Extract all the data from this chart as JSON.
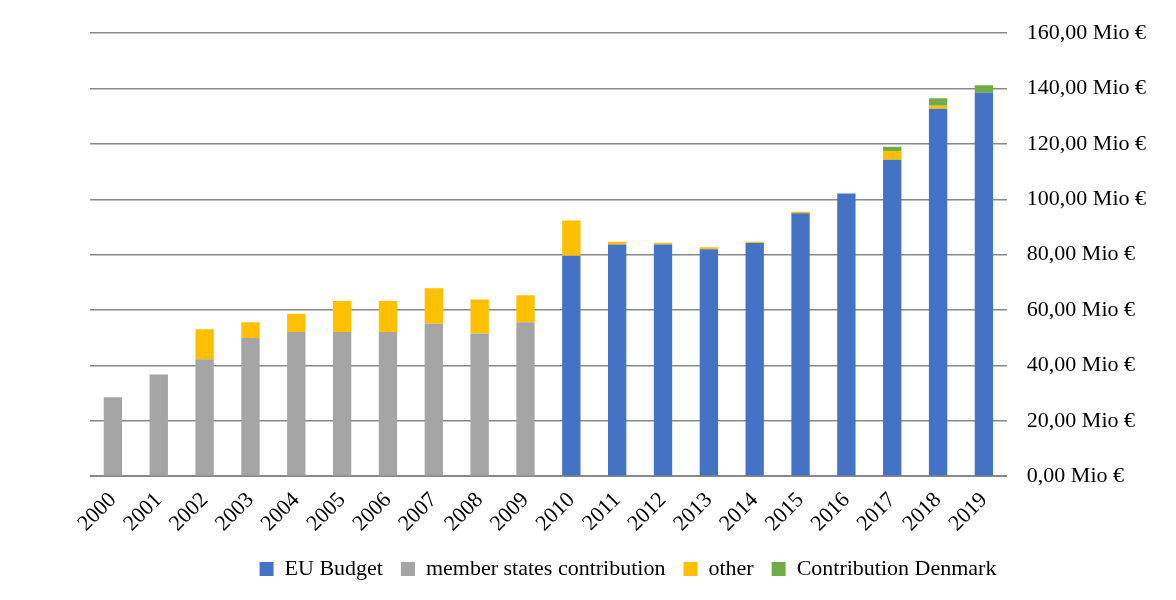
{
  "chart_data": {
    "type": "bar",
    "stacked": true,
    "grid": "y",
    "legend": "bottom",
    "categories": [
      "2000",
      "2001",
      "2002",
      "2003",
      "2004",
      "2005",
      "2006",
      "2007",
      "2008",
      "2009",
      "2010",
      "2011",
      "2012",
      "2013",
      "2014",
      "2015",
      "2016",
      "2017",
      "2018",
      "2019"
    ],
    "series": [
      {
        "name": "EU Budget",
        "color": "#4472c4",
        "values": [
          null,
          null,
          null,
          null,
          null,
          null,
          null,
          null,
          null,
          null,
          79.6,
          83.7,
          83.7,
          82.0,
          84.2,
          95.0,
          102.1,
          114.3,
          132.7,
          138.5
        ]
      },
      {
        "name": "member states contribution",
        "color": "#a5a5a5",
        "values": [
          28.5,
          36.7,
          42.2,
          49.9,
          52.1,
          52.1,
          52.1,
          55.1,
          51.5,
          55.6,
          null,
          null,
          null,
          null,
          null,
          null,
          null,
          null,
          null,
          null
        ]
      },
      {
        "name": "other",
        "color": "#ffc000",
        "values": [
          null,
          null,
          10.9,
          5.7,
          6.6,
          11.2,
          11.2,
          12.8,
          12.3,
          9.8,
          12.8,
          1.0,
          0.6,
          0.7,
          0.5,
          0.5,
          null,
          3.2,
          1.1,
          null
        ]
      },
      {
        "name": "Contribution Denmark",
        "color": "#70ad47",
        "values": [
          null,
          null,
          null,
          null,
          null,
          null,
          null,
          null,
          null,
          null,
          null,
          null,
          null,
          null,
          null,
          null,
          null,
          1.5,
          2.7,
          2.7
        ]
      }
    ],
    "ylim": [
      0,
      160
    ],
    "yticks": [
      {
        "value": 0,
        "label": "0,00 Mio €"
      },
      {
        "value": 20,
        "label": "20,00 Mio €"
      },
      {
        "value": 40,
        "label": "40,00 Mio €"
      },
      {
        "value": 60,
        "label": "60,00 Mio €"
      },
      {
        "value": 80,
        "label": "80,00 Mio €"
      },
      {
        "value": 100,
        "label": "100,00 Mio €"
      },
      {
        "value": 120,
        "label": "120,00 Mio €"
      },
      {
        "value": 140,
        "label": "140,00 Mio €"
      },
      {
        "value": 160,
        "label": "160,00 Mio €"
      }
    ]
  }
}
